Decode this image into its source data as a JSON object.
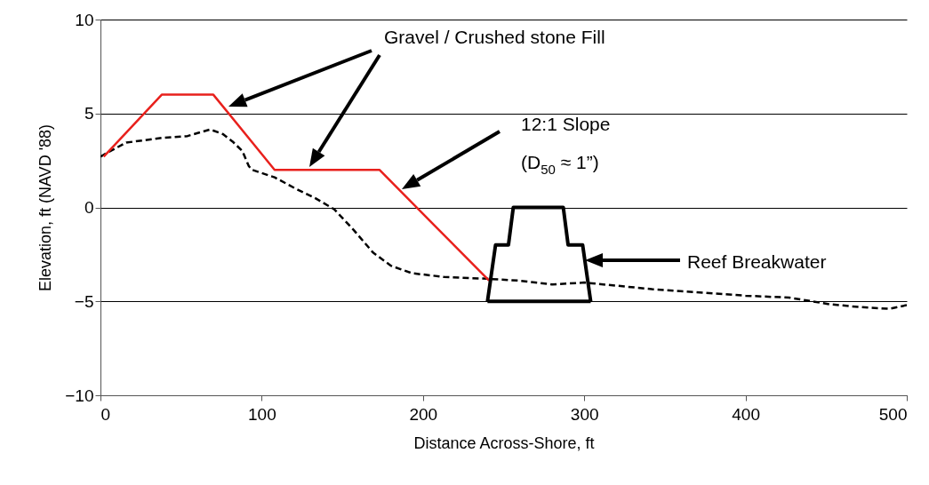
{
  "chart_data": {
    "type": "line",
    "xlabel": "Distance Across-Shore, ft",
    "ylabel": "Elevation, ft (NAVD '88)",
    "xlim": [
      0,
      500
    ],
    "xticks": [
      0,
      100,
      200,
      300,
      400,
      500
    ],
    "ylim": [
      -10,
      10
    ],
    "yticks": [
      -10,
      -5,
      0,
      5,
      10
    ],
    "grid": "y",
    "legend": false,
    "series": [
      {
        "color": "#000000",
        "line_style": "dashed",
        "x": [
          0,
          4,
          16,
          38,
          54,
          68,
          76,
          82,
          88,
          92,
          94,
          108,
          121,
          133,
          145,
          157,
          169,
          180,
          193,
          213,
          240,
          260,
          280,
          300,
          342,
          400,
          427,
          452,
          470,
          489,
          500
        ],
        "values": [
          2.7,
          2.9,
          3.45,
          3.7,
          3.8,
          4.15,
          3.9,
          3.5,
          3.0,
          2.2,
          2.0,
          1.6,
          1.0,
          0.5,
          -0.1,
          -1.2,
          -2.4,
          -3.1,
          -3.5,
          -3.7,
          -3.8,
          -3.9,
          -4.1,
          -4.0,
          -4.35,
          -4.7,
          -4.8,
          -5.15,
          -5.3,
          -5.4,
          -5.2
        ]
      },
      {
        "color": "#e8201c",
        "line_style": "solid",
        "x": [
          2,
          38,
          70,
          108,
          173,
          241
        ],
        "values": [
          2.7,
          6,
          6,
          2,
          2,
          -3.9
        ]
      },
      {
        "color": "#000000",
        "line_style": "solid",
        "x": [
          240,
          245,
          253,
          256,
          287,
          290,
          299,
          304
        ],
        "values": [
          -5,
          -2,
          -2,
          0,
          0,
          -2,
          -2,
          -5
        ]
      },
      {
        "color": "#000000",
        "line_style": "solid",
        "x": [
          240,
          304
        ],
        "values": [
          -5,
          -5
        ]
      }
    ],
    "annotations": [
      "Gravel / Crushed stone Fill",
      "12:1 Slope",
      "(D$_{50}$ ≈ 1”)",
      "Reef Breakwater"
    ]
  }
}
